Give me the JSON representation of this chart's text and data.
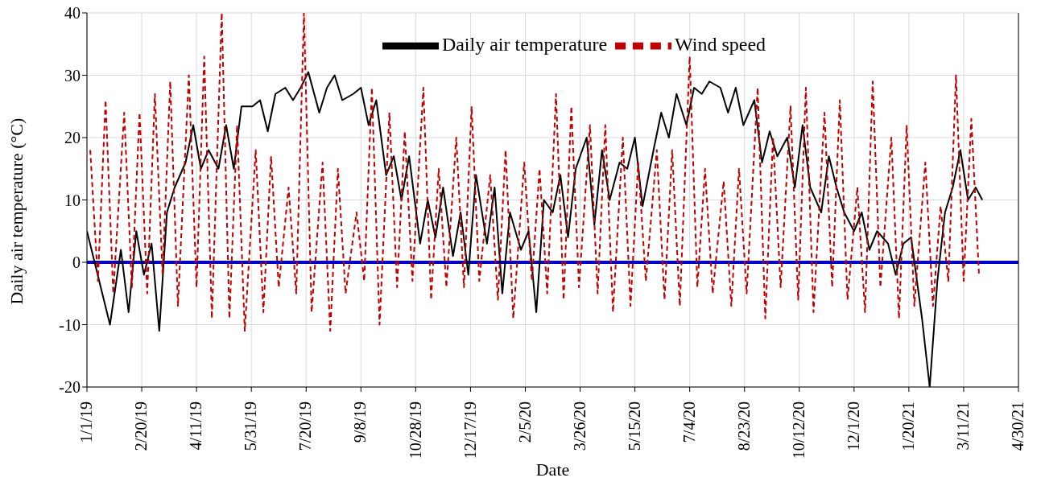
{
  "chart_data": {
    "type": "line",
    "xlabel": "Date",
    "ylabel": "Daily air temperature (°C)",
    "xlim": [
      "2019-01-01",
      "2021-04-30"
    ],
    "xticks": [
      {
        "value": "2019-01-01",
        "label": "1/1/19"
      },
      {
        "value": "2019-02-20",
        "label": "2/20/19"
      },
      {
        "value": "2019-04-11",
        "label": "4/11/19"
      },
      {
        "value": "2019-05-31",
        "label": "5/31/19"
      },
      {
        "value": "2019-07-20",
        "label": "7/20/19"
      },
      {
        "value": "2019-09-08",
        "label": "9/8/19"
      },
      {
        "value": "2019-10-28",
        "label": "10/28/19"
      },
      {
        "value": "2019-12-17",
        "label": "12/17/19"
      },
      {
        "value": "2020-02-05",
        "label": "2/5/20"
      },
      {
        "value": "2020-03-26",
        "label": "3/26/20"
      },
      {
        "value": "2020-05-15",
        "label": "5/15/20"
      },
      {
        "value": "2020-07-04",
        "label": "7/4/20"
      },
      {
        "value": "2020-08-23",
        "label": "8/23/20"
      },
      {
        "value": "2020-10-12",
        "label": "10/12/20"
      },
      {
        "value": "2020-12-01",
        "label": "12/1/20"
      },
      {
        "value": "2021-01-20",
        "label": "1/20/21"
      },
      {
        "value": "2021-03-11",
        "label": "3/11/21"
      },
      {
        "value": "2021-04-30",
        "label": "4/30/21"
      }
    ],
    "ylim": [
      -20,
      40
    ],
    "yticks": [
      -20,
      -10,
      0,
      10,
      20,
      30,
      40
    ],
    "grid": true,
    "legend": "top",
    "marker": "none",
    "ref_lines": [
      {
        "axis": "y",
        "value": 0,
        "color": "#0000cc"
      }
    ],
    "series": [
      {
        "name": "Daily air temperature",
        "color": "#000000",
        "line_style": "solid",
        "x": [
          "2019-01-01",
          "2019-01-08",
          "2019-01-15",
          "2019-01-22",
          "2019-02-01",
          "2019-02-08",
          "2019-02-15",
          "2019-02-22",
          "2019-03-01",
          "2019-03-08",
          "2019-03-15",
          "2019-03-22",
          "2019-04-01",
          "2019-04-08",
          "2019-04-15",
          "2019-04-22",
          "2019-05-01",
          "2019-05-08",
          "2019-05-15",
          "2019-05-22",
          "2019-06-01",
          "2019-06-08",
          "2019-06-15",
          "2019-06-22",
          "2019-07-01",
          "2019-07-08",
          "2019-07-15",
          "2019-07-22",
          "2019-08-01",
          "2019-08-08",
          "2019-08-15",
          "2019-08-22",
          "2019-09-01",
          "2019-09-08",
          "2019-09-15",
          "2019-09-22",
          "2019-10-01",
          "2019-10-08",
          "2019-10-15",
          "2019-10-22",
          "2019-11-01",
          "2019-11-08",
          "2019-11-15",
          "2019-11-22",
          "2019-12-01",
          "2019-12-08",
          "2019-12-15",
          "2019-12-22",
          "2020-01-01",
          "2020-01-08",
          "2020-01-15",
          "2020-01-22",
          "2020-02-01",
          "2020-02-08",
          "2020-02-15",
          "2020-02-22",
          "2020-03-01",
          "2020-03-08",
          "2020-03-15",
          "2020-03-22",
          "2020-04-01",
          "2020-04-08",
          "2020-04-15",
          "2020-04-22",
          "2020-05-01",
          "2020-05-08",
          "2020-05-15",
          "2020-05-22",
          "2020-06-01",
          "2020-06-08",
          "2020-06-15",
          "2020-06-22",
          "2020-07-01",
          "2020-07-08",
          "2020-07-15",
          "2020-07-22",
          "2020-08-01",
          "2020-08-08",
          "2020-08-15",
          "2020-08-22",
          "2020-09-01",
          "2020-09-08",
          "2020-09-15",
          "2020-09-22",
          "2020-10-01",
          "2020-10-08",
          "2020-10-15",
          "2020-10-22",
          "2020-11-01",
          "2020-11-08",
          "2020-11-15",
          "2020-11-22",
          "2020-12-01",
          "2020-12-08",
          "2020-12-15",
          "2020-12-22",
          "2021-01-01",
          "2021-01-08",
          "2021-01-15",
          "2021-01-22",
          "2021-02-01",
          "2021-02-08",
          "2021-02-15",
          "2021-02-22",
          "2021-03-01",
          "2021-03-08",
          "2021-03-15",
          "2021-03-22",
          "2021-03-28"
        ],
        "values": [
          5,
          0,
          -5,
          -10,
          2,
          -8,
          5,
          -2,
          3,
          -11,
          8,
          12,
          16,
          22,
          15,
          18,
          15,
          22,
          15,
          25,
          25,
          26,
          21,
          27,
          28,
          26,
          28,
          30.5,
          24,
          28,
          30,
          26,
          27,
          28,
          22,
          26,
          14,
          17,
          10,
          17,
          3,
          10,
          4,
          12,
          1,
          8,
          -2,
          14,
          3,
          12,
          -5,
          8,
          2,
          5,
          -8,
          10,
          8,
          14,
          4,
          15,
          20,
          6,
          18,
          10,
          16,
          15,
          20,
          9,
          18,
          24,
          20,
          27,
          22,
          28,
          27,
          29,
          28,
          24,
          28,
          22,
          26,
          16,
          21,
          17,
          20,
          12,
          22,
          12,
          8,
          17,
          12,
          8,
          5,
          8,
          2,
          5,
          3,
          -2,
          3,
          4,
          -9,
          -20,
          -3,
          8,
          12,
          18,
          10,
          12,
          10
        ]
      },
      {
        "name": "Wind speed",
        "color": "#c00000",
        "line_style": "dashed",
        "x": [
          "2019-01-04",
          "2019-01-11",
          "2019-01-18",
          "2019-01-25",
          "2019-02-04",
          "2019-02-11",
          "2019-02-18",
          "2019-02-25",
          "2019-03-04",
          "2019-03-11",
          "2019-03-18",
          "2019-03-25",
          "2019-04-04",
          "2019-04-11",
          "2019-04-18",
          "2019-04-25",
          "2019-05-04",
          "2019-05-11",
          "2019-05-18",
          "2019-05-25",
          "2019-06-04",
          "2019-06-11",
          "2019-06-18",
          "2019-06-25",
          "2019-07-04",
          "2019-07-11",
          "2019-07-18",
          "2019-07-25",
          "2019-08-04",
          "2019-08-11",
          "2019-08-18",
          "2019-08-25",
          "2019-09-04",
          "2019-09-11",
          "2019-09-18",
          "2019-09-25",
          "2019-10-04",
          "2019-10-11",
          "2019-10-18",
          "2019-10-25",
          "2019-11-04",
          "2019-11-11",
          "2019-11-18",
          "2019-11-25",
          "2019-12-04",
          "2019-12-11",
          "2019-12-18",
          "2019-12-25",
          "2020-01-04",
          "2020-01-11",
          "2020-01-18",
          "2020-01-25",
          "2020-02-04",
          "2020-02-11",
          "2020-02-18",
          "2020-02-25",
          "2020-03-04",
          "2020-03-11",
          "2020-03-18",
          "2020-03-25",
          "2020-04-04",
          "2020-04-11",
          "2020-04-18",
          "2020-04-25",
          "2020-05-04",
          "2020-05-11",
          "2020-05-18",
          "2020-05-25",
          "2020-06-04",
          "2020-06-11",
          "2020-06-18",
          "2020-06-25",
          "2020-07-04",
          "2020-07-11",
          "2020-07-18",
          "2020-07-25",
          "2020-08-04",
          "2020-08-11",
          "2020-08-18",
          "2020-08-25",
          "2020-09-04",
          "2020-09-11",
          "2020-09-18",
          "2020-09-25",
          "2020-10-04",
          "2020-10-11",
          "2020-10-18",
          "2020-10-25",
          "2020-11-04",
          "2020-11-11",
          "2020-11-18",
          "2020-11-25",
          "2020-12-04",
          "2020-12-11",
          "2020-12-18",
          "2020-12-25",
          "2021-01-04",
          "2021-01-11",
          "2021-01-18",
          "2021-01-25",
          "2021-02-04",
          "2021-02-11",
          "2021-02-18",
          "2021-02-25",
          "2021-03-04",
          "2021-03-11",
          "2021-03-18",
          "2021-03-25"
        ],
        "values": [
          18,
          -3,
          26,
          -5,
          24,
          -4,
          24,
          -5,
          27,
          -2,
          29,
          -7,
          30,
          -4,
          33,
          -9,
          40,
          -9,
          22,
          -11,
          18,
          -8,
          17,
          -4,
          12,
          -5,
          40,
          -8,
          16,
          -11,
          15,
          -5,
          8,
          -3,
          28,
          -10,
          24,
          -4,
          21,
          -3,
          28,
          -6,
          15,
          -4,
          20,
          -4,
          25,
          -3,
          14,
          -6,
          18,
          -9,
          16,
          -3,
          15,
          -5,
          27,
          -6,
          25,
          -4,
          22,
          -5,
          22,
          -8,
          20,
          -7,
          16,
          -3,
          18,
          -6,
          18,
          -7,
          33,
          -4,
          15,
          -5,
          13,
          -7,
          15,
          -5,
          28,
          -9,
          20,
          -4,
          25,
          -6,
          28,
          -8,
          24,
          -4,
          26,
          -6,
          12,
          -8,
          29,
          -4,
          20,
          -9,
          22,
          -7,
          16,
          -7,
          9,
          -3,
          30,
          -3,
          23,
          -2
        ]
      }
    ]
  }
}
